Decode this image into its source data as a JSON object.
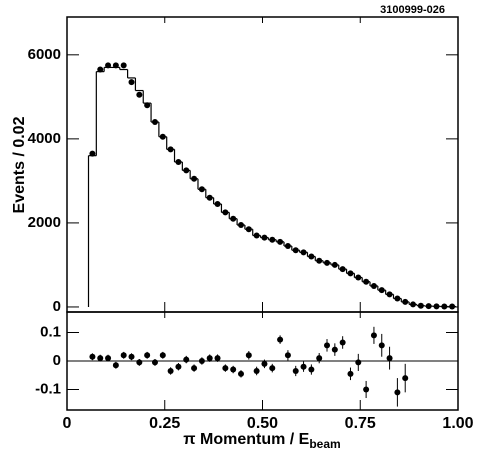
{
  "chart_data": [
    {
      "type": "histogram",
      "annotation": "3100999-026",
      "y_label": "Events / 0.02",
      "xlim": [
        0,
        1
      ],
      "xticks": [
        0,
        0.25,
        0.5,
        0.75,
        1
      ],
      "ylim": [
        -120,
        6900
      ],
      "yticks": [
        0,
        2000,
        4000,
        6000
      ],
      "color": "#000000",
      "bins": [
        0.055,
        0.075,
        0.095,
        0.115,
        0.135,
        0.155,
        0.175,
        0.195,
        0.215,
        0.235,
        0.255,
        0.275,
        0.295,
        0.315,
        0.335,
        0.355,
        0.375,
        0.395,
        0.415,
        0.435,
        0.455,
        0.475,
        0.495,
        0.515,
        0.535,
        0.555,
        0.575,
        0.595,
        0.615,
        0.635,
        0.655,
        0.675,
        0.695,
        0.715,
        0.735,
        0.755,
        0.775,
        0.795,
        0.815,
        0.835,
        0.855,
        0.875,
        0.895,
        0.915,
        0.935,
        0.955,
        0.975,
        0.995
      ],
      "values": [
        3600,
        5600,
        5700,
        5700,
        5650,
        5450,
        5150,
        4850,
        4400,
        4050,
        3750,
        3450,
        3250,
        3050,
        2800,
        2600,
        2450,
        2250,
        2100,
        1950,
        1850,
        1700,
        1650,
        1600,
        1550,
        1450,
        1350,
        1300,
        1200,
        1100,
        1050,
        1000,
        900,
        800,
        700,
        600,
        500,
        400,
        300,
        200,
        120,
        60,
        30,
        20,
        15,
        10,
        10
      ],
      "points_x": [
        0.065,
        0.085,
        0.105,
        0.125,
        0.145,
        0.165,
        0.185,
        0.205,
        0.225,
        0.245,
        0.265,
        0.285,
        0.305,
        0.325,
        0.345,
        0.365,
        0.385,
        0.405,
        0.425,
        0.445,
        0.465,
        0.485,
        0.505,
        0.525,
        0.545,
        0.565,
        0.585,
        0.605,
        0.625,
        0.645,
        0.665,
        0.685,
        0.705,
        0.725,
        0.745,
        0.765,
        0.785,
        0.805,
        0.825,
        0.845,
        0.865,
        0.885,
        0.905,
        0.925,
        0.945,
        0.965,
        0.985
      ],
      "points": [
        3650,
        5650,
        5750,
        5750,
        5750,
        5350,
        5050,
        4800,
        4400,
        4050,
        3750,
        3450,
        3250,
        3050,
        2800,
        2600,
        2450,
        2250,
        2100,
        1950,
        1850,
        1700,
        1650,
        1600,
        1550,
        1450,
        1350,
        1300,
        1200,
        1100,
        1050,
        1000,
        900,
        800,
        700,
        600,
        500,
        400,
        300,
        200,
        120,
        60,
        30,
        20,
        15,
        10,
        10
      ]
    },
    {
      "type": "scatter",
      "x_label": "π Momentum / E",
      "x_label_sub": "beam",
      "xlim": [
        0,
        1
      ],
      "xticks": [
        0,
        0.25,
        {
          "value": 0.5,
          "label": "0.50"
        },
        0.75,
        {
          "value": 1,
          "label": "1.00"
        }
      ],
      "ylim": [
        -0.172,
        0.172
      ],
      "yticks": [
        -0.1,
        0,
        0.1
      ],
      "color": "#000000",
      "x": [
        0.065,
        0.085,
        0.105,
        0.125,
        0.145,
        0.165,
        0.185,
        0.205,
        0.225,
        0.245,
        0.265,
        0.285,
        0.305,
        0.325,
        0.345,
        0.365,
        0.385,
        0.405,
        0.425,
        0.445,
        0.465,
        0.485,
        0.505,
        0.525,
        0.545,
        0.565,
        0.585,
        0.605,
        0.625,
        0.645,
        0.665,
        0.685,
        0.705,
        0.725,
        0.745,
        0.765,
        0.785,
        0.805,
        0.825,
        0.845,
        0.865
      ],
      "values": [
        0.015,
        0.01,
        0.01,
        -0.015,
        0.02,
        0.015,
        -0.005,
        0.02,
        -0.005,
        0.02,
        -0.035,
        -0.02,
        0.005,
        -0.025,
        0.0,
        0.01,
        0.01,
        -0.025,
        -0.03,
        -0.045,
        0.02,
        -0.035,
        -0.01,
        -0.025,
        0.075,
        0.02,
        -0.035,
        -0.02,
        -0.03,
        0.01,
        0.055,
        0.04,
        0.065,
        -0.045,
        -0.005,
        -0.1,
        0.09,
        0.055,
        0.01,
        -0.11,
        -0.06
      ],
      "errors": [
        0.012,
        0.012,
        0.012,
        0.012,
        0.012,
        0.012,
        0.012,
        0.012,
        0.012,
        0.012,
        0.013,
        0.013,
        0.013,
        0.013,
        0.013,
        0.013,
        0.013,
        0.013,
        0.013,
        0.013,
        0.015,
        0.015,
        0.015,
        0.015,
        0.015,
        0.018,
        0.018,
        0.018,
        0.018,
        0.018,
        0.022,
        0.022,
        0.022,
        0.022,
        0.03,
        0.03,
        0.03,
        0.04,
        0.04,
        0.05,
        0.05
      ]
    }
  ]
}
